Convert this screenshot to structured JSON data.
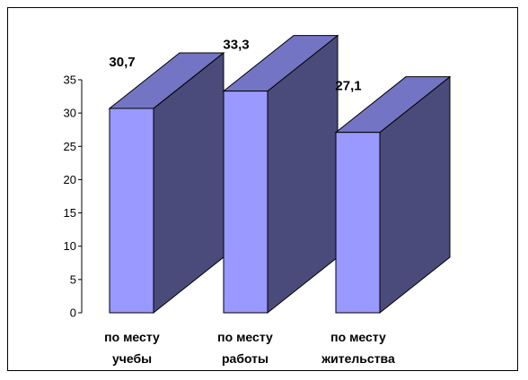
{
  "chart_data": {
    "type": "bar",
    "style": "3d",
    "categories": [
      [
        "по месту",
        "учебы"
      ],
      [
        "по месту",
        "работы"
      ],
      [
        "по месту",
        "жительства"
      ]
    ],
    "values": [
      30.7,
      33.3,
      27.1
    ],
    "value_labels": [
      "30,7",
      "33,3",
      "27,1"
    ],
    "ylim": [
      0,
      35
    ],
    "yticks": [
      0,
      5,
      10,
      15,
      20,
      25,
      30,
      35
    ],
    "grid": false,
    "legend": "none",
    "colors": {
      "front": "#9999ff",
      "side": "#4b4b7b",
      "top": "#7474c4",
      "outline": "#000000"
    }
  }
}
